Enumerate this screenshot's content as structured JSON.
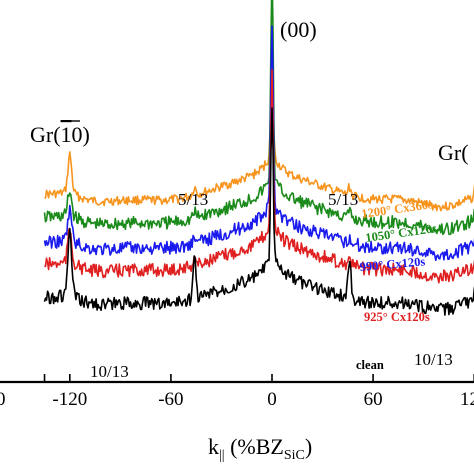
{
  "chart_data": {
    "type": "line",
    "xlabel_main": "k",
    "xlabel_sub": "||",
    "xlabel_rest": " (%BZ",
    "xlabel_subscript": "SiC",
    "xlabel_close": ")",
    "ylabel": "",
    "xlim": [
      -135,
      125
    ],
    "x_ticks": [
      {
        "value": -120,
        "label": "-120"
      },
      {
        "value": -60,
        "label": "-60"
      },
      {
        "value": 0,
        "label": "0"
      },
      {
        "value": 60,
        "label": "60"
      },
      {
        "value": 120,
        "label": "120"
      }
    ],
    "x_ticks_partial": [
      {
        "value": -135,
        "label": "0"
      }
    ],
    "annotations": {
      "peak_00": "(00)",
      "gr_left": "Gr(",
      "gr_left_bar": "1",
      "gr_left_rest": "0)",
      "gr_right": "Gr(",
      "frac_5_13_left": "5/13",
      "frac_5_13_right": "5/13",
      "frac_10_13_left": "10/13",
      "frac_10_13_right": "10/13"
    },
    "series": [
      {
        "name": "1200° Cx360s",
        "color": "#f7941d",
        "baseline": 215,
        "peak_left": 35,
        "peak_center": 90,
        "peak_right": 30,
        "frac": 8,
        "noise": 2
      },
      {
        "name": "1050° Cx120s",
        "color": "#1a8a1a",
        "baseline": 238,
        "peak_left": 22,
        "peak_center": 205,
        "peak_right": 22,
        "frac": 6,
        "noise": 3
      },
      {
        "name": "990° Cx120s",
        "color": "#1a1aee",
        "baseline": 263,
        "peak_left": 28,
        "peak_center": 180,
        "peak_right": 28,
        "frac": 6,
        "noise": 3
      },
      {
        "name": "925° Cx120s",
        "color": "#e02020",
        "baseline": 285,
        "peak_left": 30,
        "peak_center": 150,
        "peak_right": 30,
        "frac": 8,
        "noise": 3
      },
      {
        "name": "clean",
        "color": "#000000",
        "baseline": 318,
        "peak_left": 60,
        "peak_center": 150,
        "peak_right": 50,
        "frac": 40,
        "noise": 3
      }
    ]
  }
}
